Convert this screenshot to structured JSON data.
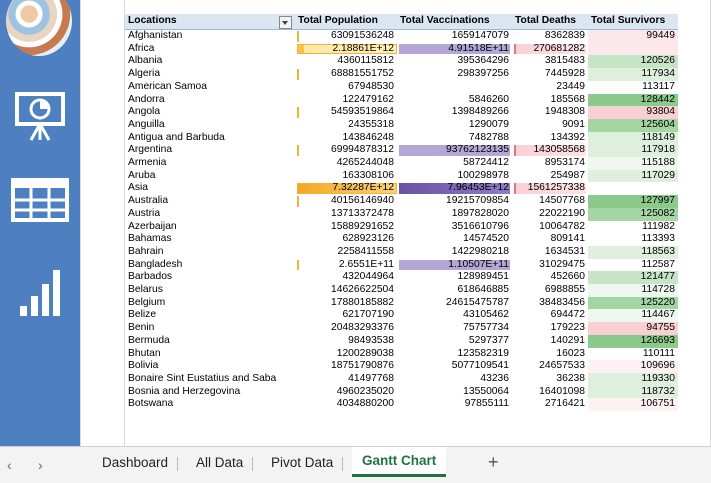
{
  "headers": {
    "locations": "Locations",
    "population": "Total Population",
    "vaccinations": "Total Vaccinations",
    "deaths": "Total Deaths",
    "survivors": "Total Survivors"
  },
  "sidebar": {
    "icons": [
      "globe-image",
      "presentation-chart-icon",
      "table-grid-icon",
      "bar-chart-icon"
    ]
  },
  "colors": {
    "pop_bar": "#f5b335",
    "pop_bar_light": "#ffe08a",
    "vac_bar": "#8e7cc3",
    "vac_bar_dark": "#6a52a3",
    "death_fill": "#f8c2c8",
    "survivor_green_high": "#7fc57f",
    "survivor_green_low": "#e2f0e2",
    "survivor_red": "#f8d0d4"
  },
  "rows": [
    {
      "loc": "Afghanistan",
      "pop": "63091536248",
      "vac": "1659147079",
      "dea": "8362839",
      "sur": "99449",
      "popPct": 0.02,
      "vacPct": 0.01,
      "deaPct": 0.02,
      "surTone": "red-light"
    },
    {
      "loc": "Africa",
      "pop": "2.18861E+12",
      "vac": "4.91518E+11",
      "dea": "270681282",
      "sur": "",
      "popPct": 0.3,
      "vacPct": 0.62,
      "deaPct": 0.6,
      "surTone": "red-light"
    },
    {
      "loc": "Albania",
      "pop": "4360115812",
      "vac": "395364296",
      "dea": "3815483",
      "sur": "120526",
      "popPct": 0,
      "vacPct": 0,
      "deaPct": 0,
      "surTone": "green-mid"
    },
    {
      "loc": "Algeria",
      "pop": "68881551752",
      "vac": "298397256",
      "dea": "7445928",
      "sur": "117934",
      "popPct": 0.02,
      "vacPct": 0,
      "deaPct": 0.02,
      "surTone": "green-light"
    },
    {
      "loc": "American Samoa",
      "pop": "67948530",
      "vac": "",
      "dea": "23449",
      "sur": "113117",
      "popPct": 0,
      "vacPct": 0,
      "deaPct": 0,
      "surTone": "white"
    },
    {
      "loc": "Andorra",
      "pop": "122479162",
      "vac": "5846260",
      "dea": "185568",
      "sur": "128442",
      "popPct": 0,
      "vacPct": 0,
      "deaPct": 0,
      "surTone": "green-high"
    },
    {
      "loc": "Angola",
      "pop": "54593519864",
      "vac": "1398489266",
      "dea": "1948308",
      "sur": "93804",
      "popPct": 0.02,
      "vacPct": 0.01,
      "deaPct": 0,
      "surTone": "red"
    },
    {
      "loc": "Anguilla",
      "pop": "24355318",
      "vac": "1290079",
      "dea": "9091",
      "sur": "125604",
      "popPct": 0,
      "vacPct": 0,
      "deaPct": 0,
      "surTone": "green-high2"
    },
    {
      "loc": "Antigua and Barbuda",
      "pop": "143846248",
      "vac": "7482788",
      "dea": "134392",
      "sur": "118149",
      "popPct": 0,
      "vacPct": 0,
      "deaPct": 0,
      "surTone": "green-light"
    },
    {
      "loc": "Argentina",
      "pop": "69994878312",
      "vac": "93762123135",
      "dea": "143058568",
      "sur": "117918",
      "popPct": 0.02,
      "vacPct": 0.98,
      "deaPct": 0.33,
      "surTone": "green-light"
    },
    {
      "loc": "Armenia",
      "pop": "4265244048",
      "vac": "58724412",
      "dea": "8953174",
      "sur": "115188",
      "popPct": 0,
      "vacPct": 0,
      "deaPct": 0.02,
      "surTone": "white-green"
    },
    {
      "loc": "Aruba",
      "pop": "163308106",
      "vac": "100298978",
      "dea": "254987",
      "sur": "117029",
      "popPct": 0,
      "vacPct": 0,
      "deaPct": 0,
      "surTone": "green-light"
    },
    {
      "loc": "Asia",
      "pop": "7.32287E+12",
      "vac": "7.96453E+12",
      "dea": "1561257338",
      "sur": "",
      "popPct": 1,
      "vacPct": 1,
      "deaPct": 1,
      "surTone": "white"
    },
    {
      "loc": "Australia",
      "pop": "40156146940",
      "vac": "19215709854",
      "dea": "14507768",
      "sur": "127997",
      "popPct": 0.01,
      "vacPct": 0.01,
      "deaPct": 0.02,
      "surTone": "green-high"
    },
    {
      "loc": "Austria",
      "pop": "13713372478",
      "vac": "1897828020",
      "dea": "22022190",
      "sur": "125082",
      "popPct": 0,
      "vacPct": 0.01,
      "deaPct": 0.02,
      "surTone": "green-high2"
    },
    {
      "loc": "Azerbaijan",
      "pop": "15889291652",
      "vac": "3516610796",
      "dea": "10064782",
      "sur": "111982",
      "popPct": 0,
      "vacPct": 0.01,
      "deaPct": 0.02,
      "surTone": "white"
    },
    {
      "loc": "Bahamas",
      "pop": "628923126",
      "vac": "14574520",
      "dea": "809141",
      "sur": "113393",
      "popPct": 0,
      "vacPct": 0,
      "deaPct": 0,
      "surTone": "white"
    },
    {
      "loc": "Bahrain",
      "pop": "2258411558",
      "vac": "1422980218",
      "dea": "1634531",
      "sur": "118563",
      "popPct": 0,
      "vacPct": 0,
      "deaPct": 0,
      "surTone": "green-light"
    },
    {
      "loc": "Bangladesh",
      "pop": "2.6551E+11",
      "vac": "1.10507E+11",
      "dea": "31029475",
      "sur": "112587",
      "popPct": 0.04,
      "vacPct": 0.14,
      "deaPct": 0.02,
      "surTone": "white"
    },
    {
      "loc": "Barbados",
      "pop": "432044964",
      "vac": "128989451",
      "dea": "452660",
      "sur": "121477",
      "popPct": 0,
      "vacPct": 0,
      "deaPct": 0,
      "surTone": "green-mid"
    },
    {
      "loc": "Belarus",
      "pop": "14626622504",
      "vac": "618646885",
      "dea": "6988855",
      "sur": "114728",
      "popPct": 0,
      "vacPct": 0,
      "deaPct": 0.02,
      "surTone": "white-green"
    },
    {
      "loc": "Belgium",
      "pop": "17880185882",
      "vac": "24615475787",
      "dea": "38483456",
      "sur": "125220",
      "popPct": 0,
      "vacPct": 0.01,
      "deaPct": 0.02,
      "surTone": "green-high2"
    },
    {
      "loc": "Belize",
      "pop": "621707190",
      "vac": "43105462",
      "dea": "694472",
      "sur": "114467",
      "popPct": 0,
      "vacPct": 0,
      "deaPct": 0,
      "surTone": "white-green"
    },
    {
      "loc": "Benin",
      "pop": "20483293376",
      "vac": "75757734",
      "dea": "179223",
      "sur": "94755",
      "popPct": 0,
      "vacPct": 0,
      "deaPct": 0,
      "surTone": "red"
    },
    {
      "loc": "Bermuda",
      "pop": "98493538",
      "vac": "5297377",
      "dea": "140291",
      "sur": "126693",
      "popPct": 0,
      "vacPct": 0,
      "deaPct": 0,
      "surTone": "green-high"
    },
    {
      "loc": "Bhutan",
      "pop": "1200289038",
      "vac": "123582319",
      "dea": "16023",
      "sur": "110111",
      "popPct": 0,
      "vacPct": 0,
      "deaPct": 0,
      "surTone": "white"
    },
    {
      "loc": "Bolivia",
      "pop": "18751790876",
      "vac": "5077109541",
      "dea": "24657533",
      "sur": "109696",
      "popPct": 0,
      "vacPct": 0.01,
      "deaPct": 0.02,
      "surTone": "red-faint"
    },
    {
      "loc": "Bonaire Sint Eustatius and Saba",
      "pop": "41497768",
      "vac": "43236",
      "dea": "36238",
      "sur": "119330",
      "popPct": 0,
      "vacPct": 0,
      "deaPct": 0,
      "surTone": "green-light"
    },
    {
      "loc": "Bosnia and Herzegovina",
      "pop": "4960235020",
      "vac": "13550064",
      "dea": "16401098",
      "sur": "118732",
      "popPct": 0,
      "vacPct": 0,
      "deaPct": 0.02,
      "surTone": "green-light"
    },
    {
      "loc": "Botswana",
      "pop": "4034880200",
      "vac": "97855111",
      "dea": "2716421",
      "sur": "106751",
      "popPct": 0,
      "vacPct": 0,
      "deaPct": 0,
      "surTone": "red-faint"
    }
  ],
  "tabs": [
    {
      "label": "Dashboard"
    },
    {
      "label": "All Data"
    },
    {
      "label": "Pivot Data"
    },
    {
      "label": "Gantt Chart"
    }
  ],
  "add_tab": "+"
}
